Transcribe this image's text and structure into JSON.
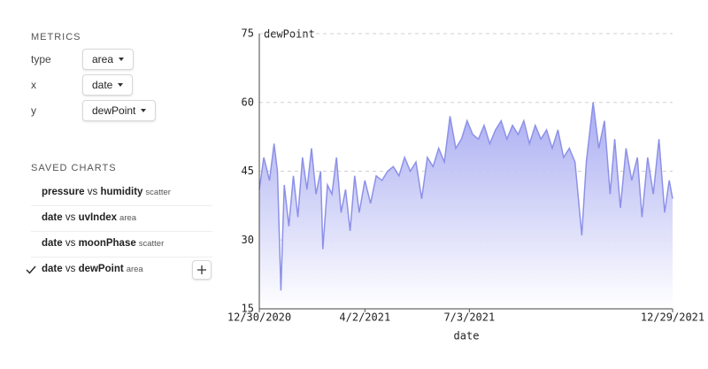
{
  "sidebar": {
    "metrics_heading": "METRICS",
    "metrics": [
      {
        "label": "type",
        "value": "area"
      },
      {
        "label": "x",
        "value": "date"
      },
      {
        "label": "y",
        "value": "dewPoint"
      }
    ],
    "saved_heading": "SAVED CHARTS",
    "saved_charts": [
      {
        "x": "pressure",
        "vs": "vs",
        "y": "humidity",
        "type": "scatter"
      },
      {
        "x": "date",
        "vs": "vs",
        "y": "uvIndex",
        "type": "area"
      },
      {
        "x": "date",
        "vs": "vs",
        "y": "moonPhase",
        "type": "scatter"
      },
      {
        "x": "date",
        "vs": "vs",
        "y": "dewPoint",
        "type": "area"
      }
    ]
  },
  "chart_data": {
    "type": "area",
    "title": "dewPoint",
    "x_label": "date",
    "color": "#8d91e8",
    "grid": true,
    "xlim": [
      "12/30/2020",
      "12/29/2021"
    ],
    "xticks": [
      "12/30/2020",
      "4/2/2021",
      "7/3/2021",
      "12/29/2021"
    ],
    "ylim": [
      15,
      75
    ],
    "yticks": [
      15,
      30,
      45,
      60,
      75
    ],
    "x": [
      "12/30/2020",
      "1/3/2021",
      "1/8/2021",
      "1/12/2021",
      "1/15/2021",
      "1/18/2021",
      "1/21/2021",
      "1/25/2021",
      "1/29/2021",
      "2/2/2021",
      "2/6/2021",
      "2/10/2021",
      "2/14/2021",
      "2/18/2021",
      "2/22/2021",
      "2/24/2021",
      "2/28/2021",
      "3/4/2021",
      "3/8/2021",
      "3/12/2021",
      "3/16/2021",
      "3/20/2021",
      "3/24/2021",
      "3/28/2021",
      "4/2/2021",
      "4/7/2021",
      "4/12/2021",
      "4/17/2021",
      "4/22/2021",
      "4/27/2021",
      "5/2/2021",
      "5/7/2021",
      "5/12/2021",
      "5/17/2021",
      "5/22/2021",
      "5/27/2021",
      "6/1/2021",
      "6/6/2021",
      "6/11/2021",
      "6/16/2021",
      "6/21/2021",
      "6/26/2021",
      "7/1/2021",
      "7/6/2021",
      "7/11/2021",
      "7/16/2021",
      "7/21/2021",
      "7/26/2021",
      "7/31/2021",
      "8/5/2021",
      "8/10/2021",
      "8/15/2021",
      "8/20/2021",
      "8/25/2021",
      "8/30/2021",
      "9/4/2021",
      "9/9/2021",
      "9/14/2021",
      "9/19/2021",
      "9/24/2021",
      "9/29/2021",
      "10/4/2021",
      "10/10/2021",
      "10/14/2021",
      "10/20/2021",
      "10/25/2021",
      "10/30/2021",
      "11/4/2021",
      "11/8/2021",
      "11/13/2021",
      "11/18/2021",
      "11/23/2021",
      "11/28/2021",
      "12/2/2021",
      "12/7/2021",
      "12/12/2021",
      "12/17/2021",
      "12/22/2021",
      "12/26/2021",
      "12/29/2021"
    ],
    "values": [
      41,
      48,
      43,
      51,
      45,
      19,
      42,
      33,
      44,
      35,
      48,
      41,
      50,
      40,
      45,
      28,
      42,
      40,
      48,
      36,
      41,
      32,
      44,
      36,
      43,
      38,
      44,
      43,
      45,
      46,
      44,
      48,
      45,
      47,
      39,
      48,
      46,
      50,
      47,
      57,
      50,
      52,
      56,
      53,
      52,
      55,
      51,
      54,
      56,
      52,
      55,
      53,
      56,
      51,
      55,
      52,
      54,
      50,
      54,
      48,
      50,
      47,
      31,
      47,
      60,
      50,
      56,
      40,
      52,
      37,
      50,
      43,
      48,
      35,
      48,
      40,
      52,
      36,
      43,
      39
    ]
  }
}
